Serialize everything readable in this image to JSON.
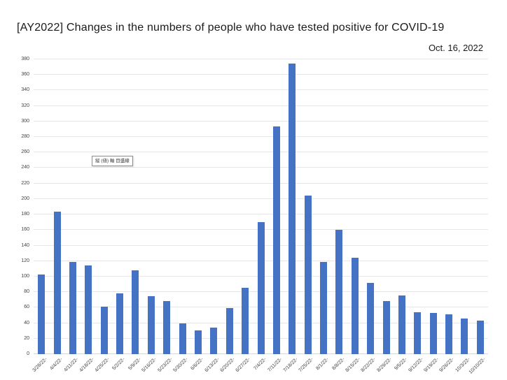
{
  "tooltip": {
    "label": "縦 (値) 軸 目盛線"
  },
  "chart_data": {
    "type": "bar",
    "title": "[AY2022] Changes in the numbers of people who have tested positive for COVID-19",
    "annotation": "Oct. 16, 2022",
    "xlabel": "",
    "ylabel": "",
    "categories": [
      "3/28/22-",
      "4/4/22-",
      "4/11/22-",
      "4/18/22-",
      "4/25/22-",
      "5/2/22-",
      "5/9/22-",
      "5/16/22-",
      "5/23/22-",
      "5/30/22-",
      "6/6/22-",
      "6/13/22-",
      "6/20/22-",
      "6/27/22-",
      "7/4/22-",
      "7/11/22-",
      "7/18/22-",
      "7/25/22-",
      "8/1/22-",
      "8/8/22-",
      "8/15/22-",
      "8/22/22-",
      "8/29/22-",
      "9/5/22-",
      "9/12/22-",
      "9/19/22-",
      "9/26/22-",
      "10/3/22-",
      "10/10/22-"
    ],
    "values": [
      103,
      184,
      119,
      114,
      61,
      78,
      108,
      75,
      68,
      40,
      31,
      34,
      59,
      86,
      170,
      294,
      375,
      204,
      119,
      160,
      124,
      92,
      68,
      76,
      54,
      53,
      51,
      46,
      43
    ],
    "ylim": [
      0,
      380
    ],
    "ytick_step": 20,
    "grid": true,
    "legend": false,
    "colors": {
      "bar": "#4472C4",
      "gridline": "#E6E6E6",
      "axis_line": "#D6D6D6",
      "tick_label": "#404040",
      "title": "#1A1A1A",
      "background": "#FFFFFF"
    }
  }
}
